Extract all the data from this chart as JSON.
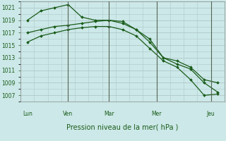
{
  "bg_color": "#cce8e8",
  "grid_color": "#b0c8c8",
  "line_color": "#1a5c1a",
  "title": "Pression niveau de la mer( hPa )",
  "ylim": [
    1006.0,
    1022.0
  ],
  "yticks": [
    1007,
    1009,
    1011,
    1013,
    1015,
    1017,
    1019,
    1021
  ],
  "xlim": [
    0,
    30
  ],
  "day_labels": [
    "Lun",
    "Ven",
    "Mar",
    "Mer",
    "Jeu"
  ],
  "day_positions": [
    1,
    7,
    13,
    20,
    28
  ],
  "vline_positions": [
    7,
    13,
    20,
    28
  ],
  "line1_x": [
    1,
    3,
    5,
    7,
    9,
    11,
    13,
    15,
    17,
    19,
    21,
    23,
    25,
    27,
    29
  ],
  "line1_y": [
    1019.0,
    1020.5,
    1021.0,
    1021.5,
    1019.5,
    1019.0,
    1019.0,
    1018.8,
    1017.5,
    1016.0,
    1013.0,
    1012.5,
    1011.5,
    1009.5,
    1009.0
  ],
  "line2_x": [
    1,
    3,
    5,
    7,
    9,
    11,
    13,
    15,
    17,
    19,
    21,
    23,
    25,
    27,
    29
  ],
  "line2_y": [
    1017.0,
    1017.5,
    1018.0,
    1018.2,
    1018.5,
    1018.8,
    1019.0,
    1018.5,
    1017.5,
    1015.5,
    1013.0,
    1012.0,
    1011.2,
    1009.0,
    1007.5
  ],
  "line3_x": [
    1,
    3,
    5,
    7,
    9,
    11,
    13,
    15,
    17,
    19,
    21,
    23,
    25,
    27,
    29
  ],
  "line3_y": [
    1015.5,
    1016.5,
    1017.0,
    1017.5,
    1017.8,
    1018.0,
    1018.0,
    1017.5,
    1016.5,
    1014.5,
    1012.5,
    1011.5,
    1009.5,
    1007.0,
    1007.2
  ],
  "title_fontsize": 7,
  "tick_fontsize": 5.5,
  "marker_size": 2.0,
  "line_width": 0.9
}
